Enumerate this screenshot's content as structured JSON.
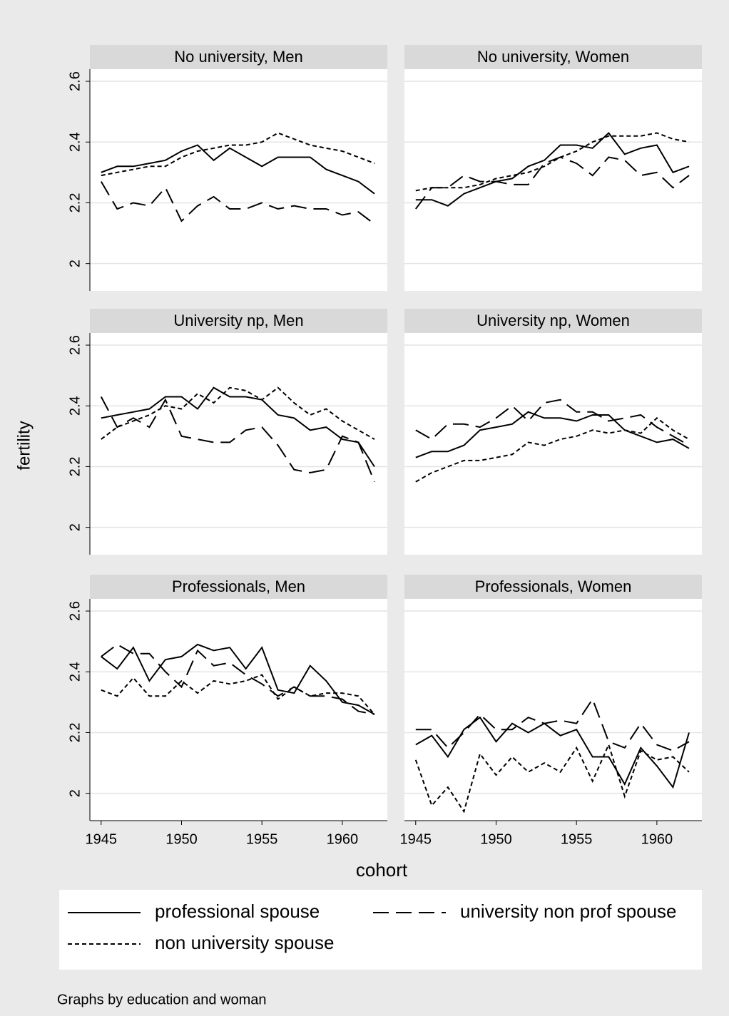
{
  "chart_data": {
    "type": "line",
    "y_label": "fertility",
    "x_label": "cohort",
    "note": "Graphs by education and woman",
    "x": [
      1945,
      1946,
      1947,
      1948,
      1949,
      1950,
      1951,
      1952,
      1953,
      1954,
      1955,
      1956,
      1957,
      1958,
      1959,
      1960,
      1961,
      1962
    ],
    "xlim": [
      1944.3,
      1962.8
    ],
    "xticks": [
      1945,
      1950,
      1955,
      1960
    ],
    "ylim": [
      1.91,
      2.64
    ],
    "yticks": [
      2,
      2.2,
      2.4,
      2.6
    ],
    "grid": true,
    "series": [
      {
        "name": "professional spouse",
        "color": "#000000",
        "dash": "solid"
      },
      {
        "name": "university non prof spouse",
        "color": "#000000",
        "dash": "long"
      },
      {
        "name": "non university spouse",
        "color": "#000000",
        "dash": "short"
      }
    ],
    "panels": [
      {
        "title": "No university, Men",
        "series": [
          {
            "values": [
              2.3,
              2.32,
              2.32,
              2.33,
              2.34,
              2.37,
              2.39,
              2.34,
              2.38,
              2.35,
              2.32,
              2.35,
              2.35,
              2.35,
              2.31,
              2.29,
              2.27,
              2.23
            ]
          },
          {
            "values": [
              2.27,
              2.18,
              2.2,
              2.19,
              2.25,
              2.14,
              2.19,
              2.22,
              2.18,
              2.18,
              2.2,
              2.18,
              2.19,
              2.18,
              2.18,
              2.16,
              2.17,
              2.13
            ]
          },
          {
            "values": [
              2.29,
              2.3,
              2.31,
              2.32,
              2.32,
              2.35,
              2.37,
              2.38,
              2.39,
              2.39,
              2.4,
              2.43,
              2.41,
              2.39,
              2.38,
              2.37,
              2.35,
              2.33
            ]
          }
        ]
      },
      {
        "title": "No university, Women",
        "series": [
          {
            "values": [
              2.21,
              2.21,
              2.19,
              2.23,
              2.25,
              2.27,
              2.28,
              2.32,
              2.34,
              2.39,
              2.39,
              2.38,
              2.43,
              2.36,
              2.38,
              2.39,
              2.3,
              2.32
            ]
          },
          {
            "values": [
              2.18,
              2.25,
              2.25,
              2.29,
              2.27,
              2.27,
              2.26,
              2.26,
              2.33,
              2.35,
              2.33,
              2.29,
              2.35,
              2.34,
              2.29,
              2.3,
              2.25,
              2.29
            ]
          },
          {
            "values": [
              2.24,
              2.25,
              2.25,
              2.25,
              2.26,
              2.28,
              2.29,
              2.3,
              2.32,
              2.35,
              2.37,
              2.4,
              2.42,
              2.42,
              2.42,
              2.43,
              2.41,
              2.4
            ]
          }
        ]
      },
      {
        "title": "University np, Men",
        "series": [
          {
            "values": [
              2.36,
              2.37,
              2.38,
              2.39,
              2.43,
              2.43,
              2.39,
              2.46,
              2.43,
              2.43,
              2.42,
              2.37,
              2.36,
              2.32,
              2.33,
              2.29,
              2.28,
              2.2
            ]
          },
          {
            "values": [
              2.43,
              2.33,
              2.36,
              2.33,
              2.42,
              2.3,
              2.29,
              2.28,
              2.28,
              2.32,
              2.33,
              2.27,
              2.19,
              2.18,
              2.19,
              2.3,
              2.28,
              2.15
            ]
          },
          {
            "values": [
              2.29,
              2.33,
              2.35,
              2.37,
              2.4,
              2.39,
              2.44,
              2.41,
              2.46,
              2.45,
              2.42,
              2.46,
              2.41,
              2.37,
              2.39,
              2.35,
              2.32,
              2.29
            ]
          }
        ]
      },
      {
        "title": "University np, Women",
        "series": [
          {
            "values": [
              2.23,
              2.25,
              2.25,
              2.27,
              2.32,
              2.33,
              2.34,
              2.38,
              2.36,
              2.36,
              2.35,
              2.37,
              2.37,
              2.32,
              2.3,
              2.28,
              2.29,
              2.26
            ]
          },
          {
            "values": [
              2.32,
              2.29,
              2.34,
              2.34,
              2.33,
              2.36,
              2.4,
              2.35,
              2.41,
              2.42,
              2.38,
              2.38,
              2.35,
              2.36,
              2.37,
              2.33,
              2.3,
              2.27
            ]
          },
          {
            "values": [
              2.15,
              2.18,
              2.2,
              2.22,
              2.22,
              2.23,
              2.24,
              2.28,
              2.27,
              2.29,
              2.3,
              2.32,
              2.31,
              2.32,
              2.31,
              2.36,
              2.32,
              2.29
            ]
          }
        ]
      },
      {
        "title": "Professionals, Men",
        "series": [
          {
            "values": [
              2.45,
              2.41,
              2.48,
              2.37,
              2.44,
              2.45,
              2.49,
              2.47,
              2.48,
              2.41,
              2.48,
              2.34,
              2.33,
              2.42,
              2.37,
              2.3,
              2.29,
              2.26
            ]
          },
          {
            "values": [
              2.45,
              2.49,
              2.46,
              2.46,
              2.4,
              2.35,
              2.47,
              2.42,
              2.43,
              2.39,
              2.36,
              2.32,
              2.35,
              2.32,
              2.32,
              2.31,
              2.27,
              2.26
            ]
          },
          {
            "values": [
              2.34,
              2.32,
              2.38,
              2.32,
              2.32,
              2.37,
              2.33,
              2.37,
              2.36,
              2.37,
              2.39,
              2.31,
              2.35,
              2.32,
              2.33,
              2.33,
              2.32,
              2.26
            ]
          }
        ]
      },
      {
        "title": "Professionals, Women",
        "series": [
          {
            "values": [
              2.16,
              2.19,
              2.12,
              2.21,
              2.25,
              2.17,
              2.23,
              2.2,
              2.23,
              2.19,
              2.21,
              2.12,
              2.12,
              2.03,
              2.15,
              2.09,
              2.02,
              2.2
            ]
          },
          {
            "values": [
              2.21,
              2.21,
              2.15,
              2.2,
              2.26,
              2.21,
              2.21,
              2.25,
              2.23,
              2.24,
              2.23,
              2.31,
              2.17,
              2.15,
              2.23,
              2.16,
              2.14,
              2.17
            ]
          },
          {
            "values": [
              2.11,
              1.96,
              2.02,
              1.94,
              2.13,
              2.06,
              2.12,
              2.07,
              2.1,
              2.07,
              2.15,
              2.04,
              2.16,
              1.99,
              2.14,
              2.11,
              2.12,
              2.07
            ]
          }
        ]
      }
    ]
  }
}
